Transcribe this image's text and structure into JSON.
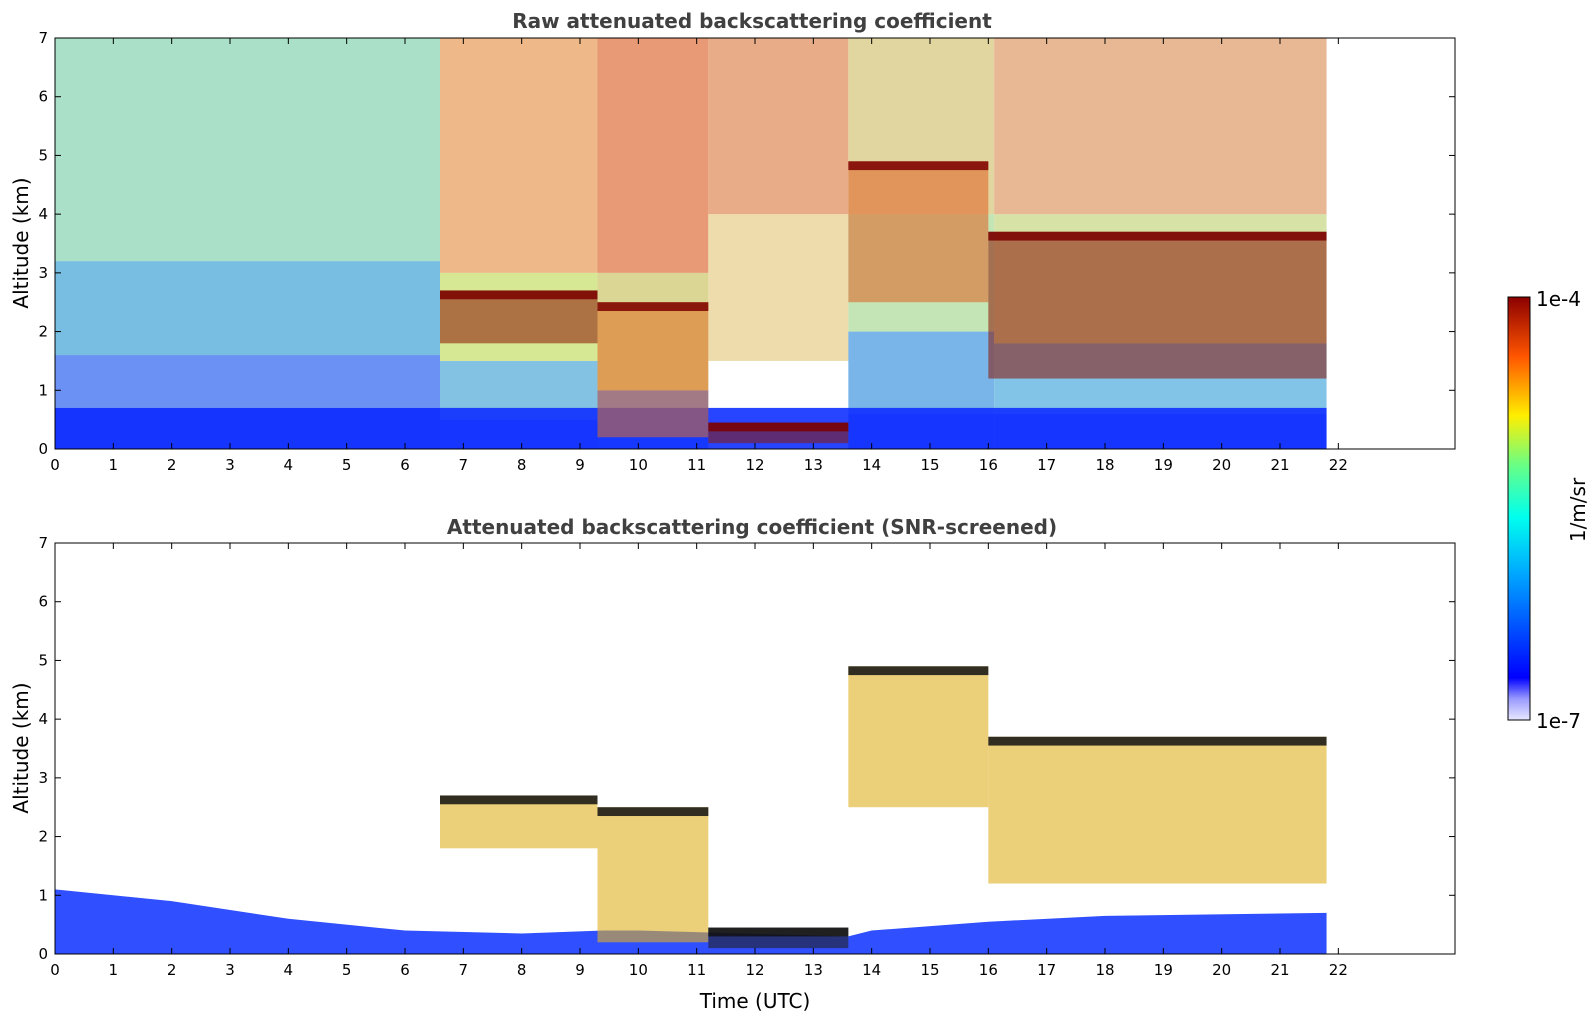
{
  "chart_data": [
    {
      "type": "heatmap",
      "title": "Raw attenuated backscattering coefficient",
      "xlabel": "",
      "ylabel": "Altitude (km)",
      "xlim": [
        0,
        24
      ],
      "ylim": [
        0,
        7
      ],
      "x_ticks": [
        "0",
        "1",
        "2",
        "3",
        "4",
        "5",
        "6",
        "7",
        "8",
        "9",
        "10",
        "11",
        "12",
        "13",
        "14",
        "15",
        "16",
        "17",
        "18",
        "19",
        "20",
        "21",
        "22"
      ],
      "y_ticks": [
        "0",
        "1",
        "2",
        "3",
        "4",
        "5",
        "6",
        "7"
      ],
      "data_end_hour": 21.8,
      "features": {
        "aerosol_layer_top_km": 0.7,
        "cloud_layers": [
          {
            "name": "",
            "start_hour": 6.6,
            "end_hour": 9.3,
            "base_km": 1.8,
            "top_km": 2.7
          },
          {
            "name": "",
            "start_hour": 9.3,
            "end_hour": 11.2,
            "base_km": 0.2,
            "top_km": 2.5
          },
          {
            "name": "",
            "start_hour": 11.2,
            "end_hour": 13.6,
            "base_km": 0.1,
            "top_km": 0.45
          },
          {
            "name": "",
            "start_hour": 13.6,
            "end_hour": 16.0,
            "base_km": 2.5,
            "top_km": 4.9
          },
          {
            "name": "",
            "start_hour": 16.0,
            "end_hour": 21.8,
            "base_km": 1.2,
            "top_km": 3.7
          }
        ]
      }
    },
    {
      "type": "heatmap",
      "title": "Attenuated backscattering coefficient (SNR-screened)",
      "xlabel": "Time (UTC)",
      "ylabel": "Altitude (km)",
      "xlim": [
        0,
        24
      ],
      "ylim": [
        0,
        7
      ],
      "x_ticks": [
        "0",
        "1",
        "2",
        "3",
        "4",
        "5",
        "6",
        "7",
        "8",
        "9",
        "10",
        "11",
        "12",
        "13",
        "14",
        "15",
        "16",
        "17",
        "18",
        "19",
        "20",
        "21",
        "22"
      ],
      "y_ticks": [
        "0",
        "1",
        "2",
        "3",
        "4",
        "5",
        "6",
        "7"
      ],
      "data_end_hour": 21.8
    }
  ],
  "colorbar": {
    "label": "1/m/sr",
    "min_label": "1e-7",
    "max_label": "1e-4",
    "colormap": "jet"
  },
  "colors": {
    "low": "#0000ff",
    "mid": "#00e0ff",
    "high": "#ffe000",
    "max": "#8b0000",
    "title_text": "#404040"
  }
}
